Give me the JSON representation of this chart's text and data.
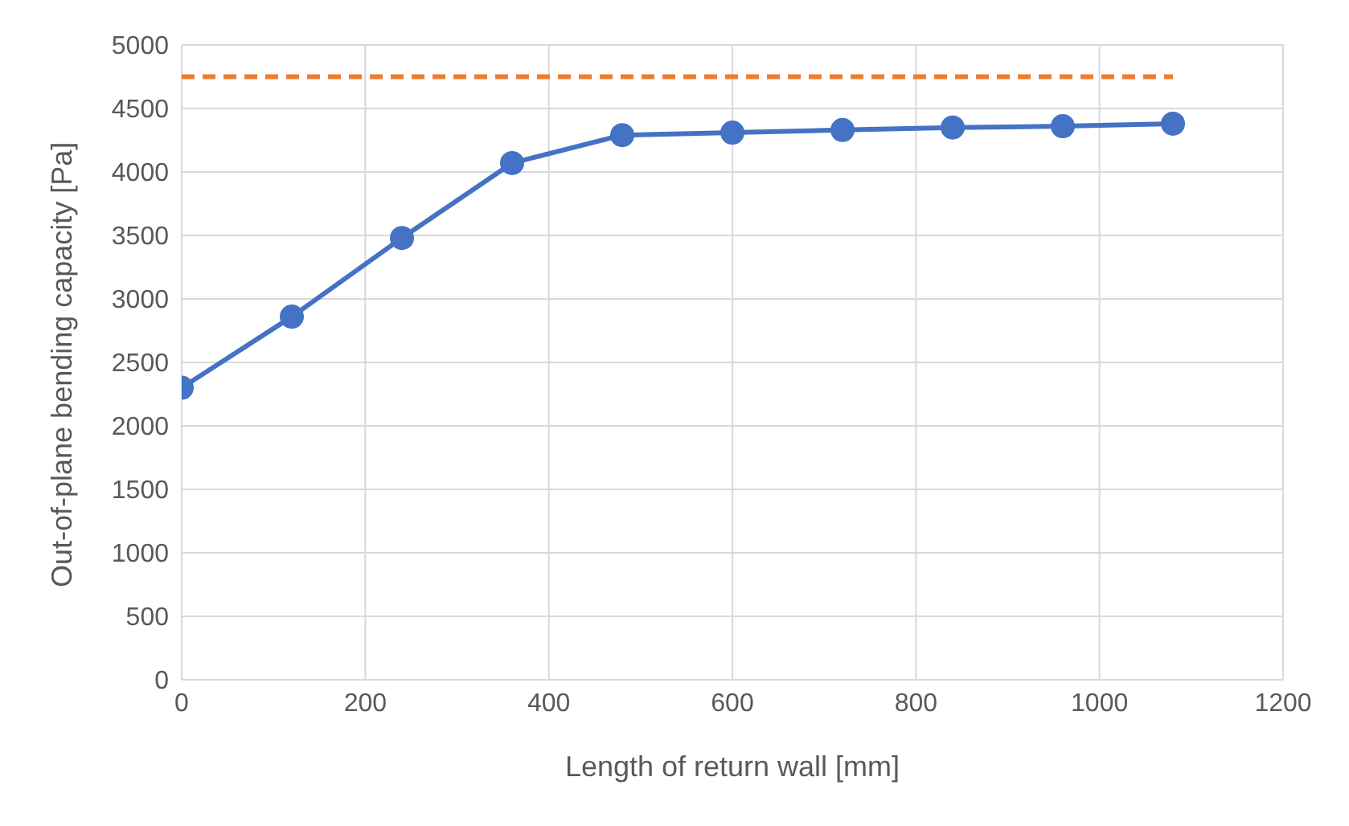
{
  "chart_data": {
    "type": "line",
    "xlabel": "Length of return wall [mm]",
    "ylabel": "Out-of-plane bending capacity [Pa]",
    "xlim": [
      0,
      1200
    ],
    "xticks": [
      0,
      200,
      400,
      600,
      800,
      1000,
      1200
    ],
    "ylim": [
      0,
      5000
    ],
    "yticks": [
      0,
      500,
      1000,
      1500,
      2000,
      2500,
      3000,
      3500,
      4000,
      4500,
      5000
    ],
    "grid": true,
    "series": [
      {
        "color": "#4472c4",
        "x": [
          0,
          120,
          240,
          360,
          480,
          600,
          720,
          840,
          960,
          1080
        ],
        "values": [
          2300,
          2860,
          3480,
          4070,
          4290,
          4310,
          4330,
          4350,
          4360,
          4380
        ],
        "marker": "circle",
        "line_style": "solid"
      },
      {
        "color": "#ed7d31",
        "x": [
          0,
          1080
        ],
        "values": [
          4750,
          4750
        ],
        "marker": "none",
        "line_style": "dashed"
      }
    ]
  }
}
